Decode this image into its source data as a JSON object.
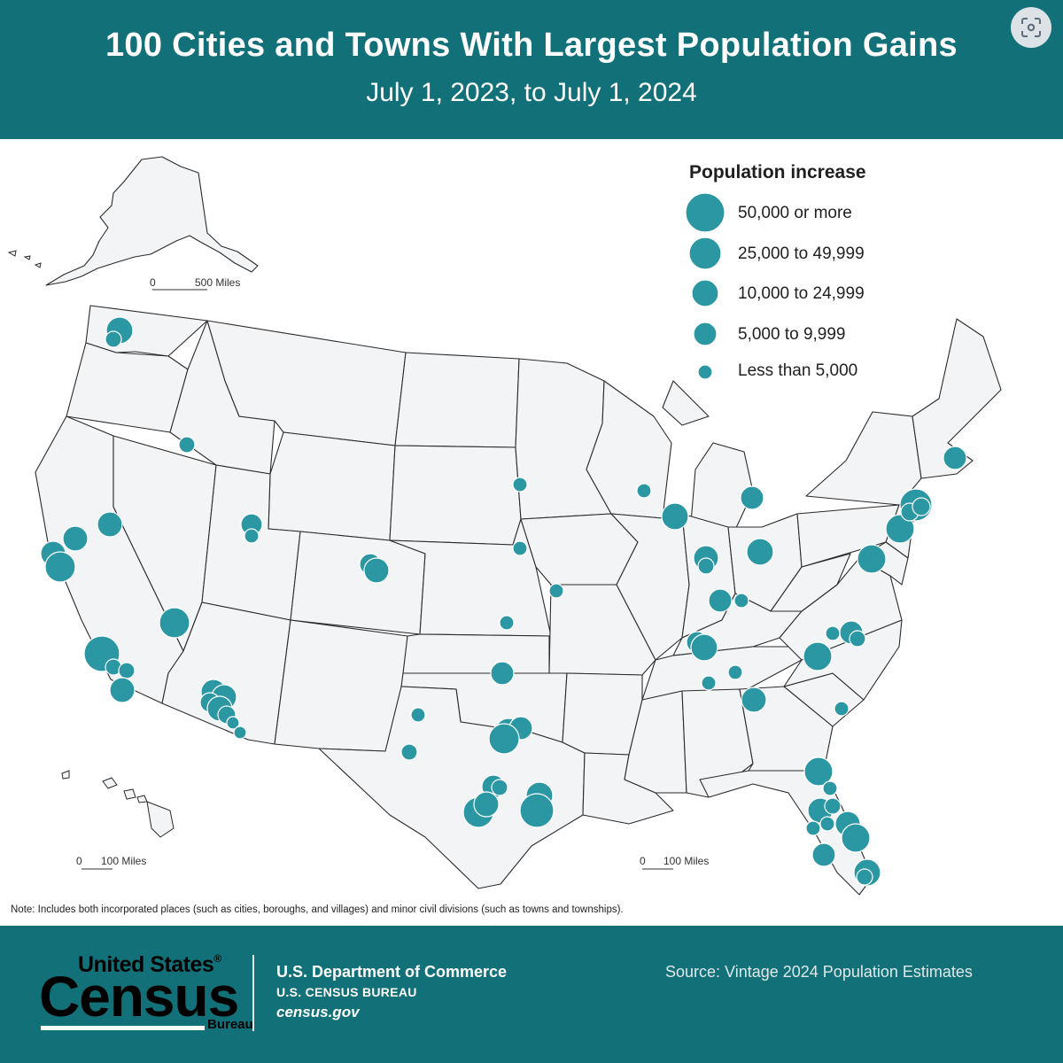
{
  "header": {
    "title": "100 Cities and Towns With Largest Population Gains",
    "subtitle": "July 1, 2023, to July 1, 2024"
  },
  "colors": {
    "teal": "#127079",
    "dot": "#2a97a3",
    "land": "#f3f4f6",
    "border": "#2a2a2a"
  },
  "icons": {
    "lens": "image-search-icon"
  },
  "legend": {
    "title": "Population increase",
    "items": [
      {
        "label": "50,000 or more",
        "size_class": "xl"
      },
      {
        "label": "25,000 to 49,999",
        "size_class": "l"
      },
      {
        "label": "10,000 to 24,999",
        "size_class": "m"
      },
      {
        "label": "5,000 to 9,999",
        "size_class": "s"
      },
      {
        "label": "Less than 5,000",
        "size_class": "xs"
      }
    ]
  },
  "scales": {
    "alaska": {
      "zero": "0",
      "value": "500 Miles"
    },
    "hawaii": {
      "zero": "0",
      "value": "100 Miles"
    },
    "florida": {
      "zero": "0",
      "value": "100 Miles"
    }
  },
  "note": "Note: Includes both incorporated places (such as cities, boroughs, and villages) and minor civil divisions (such as towns and townships).",
  "footer": {
    "logo_top": "United States",
    "logo_reg": "®",
    "logo_main": "Census",
    "logo_bottom": "Bureau",
    "dept": "U.S. Department of Commerce",
    "bureau": "U.S. CENSUS BUREAU",
    "site": "census.gov",
    "source": "Source: Vintage 2024 Population Estimates"
  }
}
